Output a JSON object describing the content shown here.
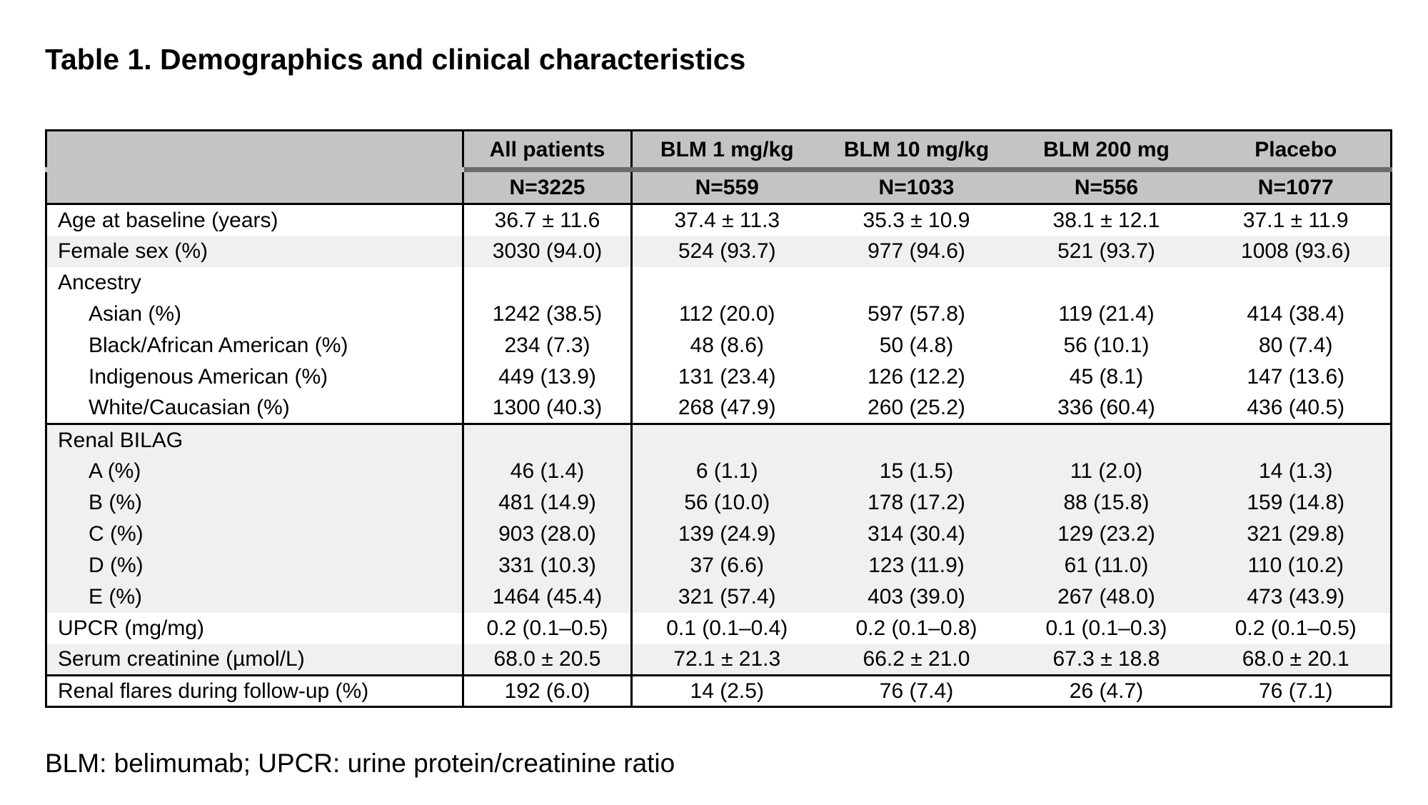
{
  "title": "Table 1. Demographics and clinical characteristics",
  "footnote": "BLM: belimumab; UPCR: urine protein/creatinine ratio",
  "colors": {
    "header_bg": "#c4c4c4",
    "header_divider": "#6b6b6b",
    "row_shade": "#f0f0f0",
    "border": "#000000"
  },
  "table": {
    "columns": [
      {
        "label": "",
        "n": ""
      },
      {
        "label": "All patients",
        "n": "N=3225"
      },
      {
        "label": "BLM 1 mg/kg",
        "n": "N=559"
      },
      {
        "label": "BLM 10 mg/kg",
        "n": "N=1033"
      },
      {
        "label": "BLM 200 mg",
        "n": "N=556"
      },
      {
        "label": "Placebo",
        "n": "N=1077"
      }
    ],
    "rows": [
      {
        "label": "Age at baseline (years)",
        "indent": false,
        "shade": false,
        "section_border_top": false,
        "values": [
          "36.7 ± 11.6",
          "37.4 ± 11.3",
          "35.3 ± 10.9",
          "38.1 ± 12.1",
          "37.1 ± 11.9"
        ]
      },
      {
        "label": "Female sex (%)",
        "indent": false,
        "shade": true,
        "section_border_top": false,
        "values": [
          "3030 (94.0)",
          "524 (93.7)",
          "977 (94.6)",
          "521 (93.7)",
          "1008 (93.6)"
        ]
      },
      {
        "label": "Ancestry",
        "indent": false,
        "shade": false,
        "section_border_top": false,
        "values": [
          "",
          "",
          "",
          "",
          ""
        ]
      },
      {
        "label": "Asian (%)",
        "indent": true,
        "shade": false,
        "section_border_top": false,
        "values": [
          "1242 (38.5)",
          "112 (20.0)",
          "597 (57.8)",
          "119 (21.4)",
          "414 (38.4)"
        ]
      },
      {
        "label": "Black/African American (%)",
        "indent": true,
        "shade": false,
        "section_border_top": false,
        "values": [
          "234 (7.3)",
          "48 (8.6)",
          "50 (4.8)",
          "56 (10.1)",
          "80 (7.4)"
        ]
      },
      {
        "label": "Indigenous American (%)",
        "indent": true,
        "shade": false,
        "section_border_top": false,
        "values": [
          "449 (13.9)",
          "131 (23.4)",
          "126 (12.2)",
          "45 (8.1)",
          "147 (13.6)"
        ]
      },
      {
        "label": "White/Caucasian (%)",
        "indent": true,
        "shade": false,
        "section_border_top": false,
        "values": [
          "1300 (40.3)",
          "268 (47.9)",
          "260 (25.2)",
          "336 (60.4)",
          "436 (40.5)"
        ]
      },
      {
        "label": "Renal BILAG",
        "indent": false,
        "shade": true,
        "section_border_top": true,
        "values": [
          "",
          "",
          "",
          "",
          ""
        ]
      },
      {
        "label": "A (%)",
        "indent": true,
        "shade": true,
        "section_border_top": false,
        "values": [
          "46 (1.4)",
          "6 (1.1)",
          "15 (1.5)",
          "11 (2.0)",
          "14 (1.3)"
        ]
      },
      {
        "label": "B (%)",
        "indent": true,
        "shade": true,
        "section_border_top": false,
        "values": [
          "481 (14.9)",
          "56 (10.0)",
          "178 (17.2)",
          "88 (15.8)",
          "159 (14.8)"
        ]
      },
      {
        "label": "C (%)",
        "indent": true,
        "shade": true,
        "section_border_top": false,
        "values": [
          "903 (28.0)",
          "139 (24.9)",
          "314 (30.4)",
          "129 (23.2)",
          "321 (29.8)"
        ]
      },
      {
        "label": "D (%)",
        "indent": true,
        "shade": true,
        "section_border_top": false,
        "values": [
          "331 (10.3)",
          "37 (6.6)",
          "123 (11.9)",
          "61 (11.0)",
          "110 (10.2)"
        ]
      },
      {
        "label": "E (%)",
        "indent": true,
        "shade": true,
        "section_border_top": false,
        "values": [
          "1464 (45.4)",
          "321 (57.4)",
          "403 (39.0)",
          "267 (48.0)",
          "473 (43.9)"
        ]
      },
      {
        "label": "UPCR (mg/mg)",
        "indent": false,
        "shade": false,
        "section_border_top": false,
        "values": [
          "0.2 (0.1–0.5)",
          "0.1 (0.1–0.4)",
          "0.2 (0.1–0.8)",
          "0.1 (0.1–0.3)",
          "0.2 (0.1–0.5)"
        ]
      },
      {
        "label": "Serum creatinine (µmol/L)",
        "indent": false,
        "shade": true,
        "section_border_top": false,
        "values": [
          "68.0 ± 20.5",
          "72.1 ± 21.3",
          "66.2 ± 21.0",
          "67.3 ± 18.8",
          "68.0 ± 20.1"
        ]
      },
      {
        "label": "Renal flares during follow-up (%)",
        "indent": false,
        "shade": false,
        "section_border_top": true,
        "values": [
          "192 (6.0)",
          "14 (2.5)",
          "76 (7.4)",
          "26 (4.7)",
          "76 (7.1)"
        ]
      }
    ]
  }
}
